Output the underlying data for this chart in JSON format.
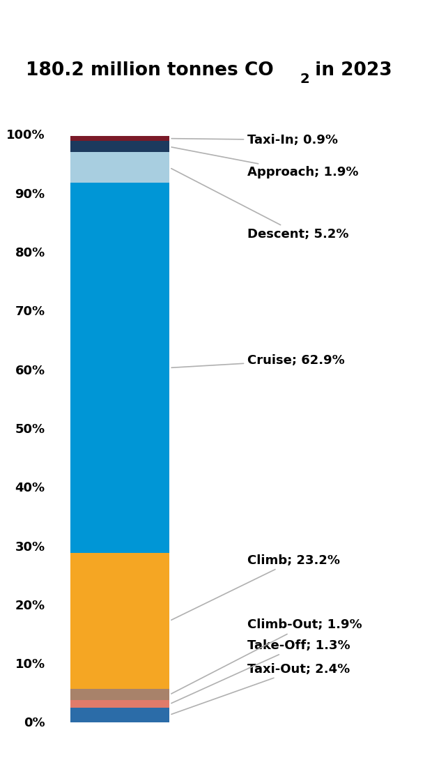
{
  "title_line1": "180.2 million tonnes CO",
  "title_co2": "₂",
  "title_line2": " in 2023",
  "title_fontsize": 19,
  "segments": [
    {
      "label": "Taxi-Out; 2.4%",
      "value": 2.4,
      "color": "#2B6CA8"
    },
    {
      "label": "Take-Off; 1.3%",
      "value": 1.3,
      "color": "#E07B6A"
    },
    {
      "label": "Climb-Out; 1.9%",
      "value": 1.9,
      "color": "#A8826A"
    },
    {
      "label": "Climb; 23.2%",
      "value": 23.2,
      "color": "#F5A623"
    },
    {
      "label": "Cruise; 62.9%",
      "value": 62.9,
      "color": "#0096D6"
    },
    {
      "label": "Descent; 5.2%",
      "value": 5.2,
      "color": "#A8CEE0"
    },
    {
      "label": "Approach; 1.9%",
      "value": 1.9,
      "color": "#1C3A5E"
    },
    {
      "label": "Taxi-In; 0.9%",
      "value": 0.9,
      "color": "#7B1A28"
    }
  ],
  "annotation_fontsize": 13,
  "ytick_fontsize": 13,
  "background_color": "#ffffff",
  "line_color": "#b0b0b0",
  "ann_positions": {
    "Taxi-In; 0.9%": 99.0,
    "Approach; 1.9%": 93.5,
    "Descent; 5.2%": 83.0,
    "Cruise; 62.9%": 61.5,
    "Climb; 23.2%": 27.5,
    "Climb-Out; 1.9%": 16.5,
    "Take-Off; 1.3%": 13.0,
    "Taxi-Out; 2.4%": 9.0
  }
}
